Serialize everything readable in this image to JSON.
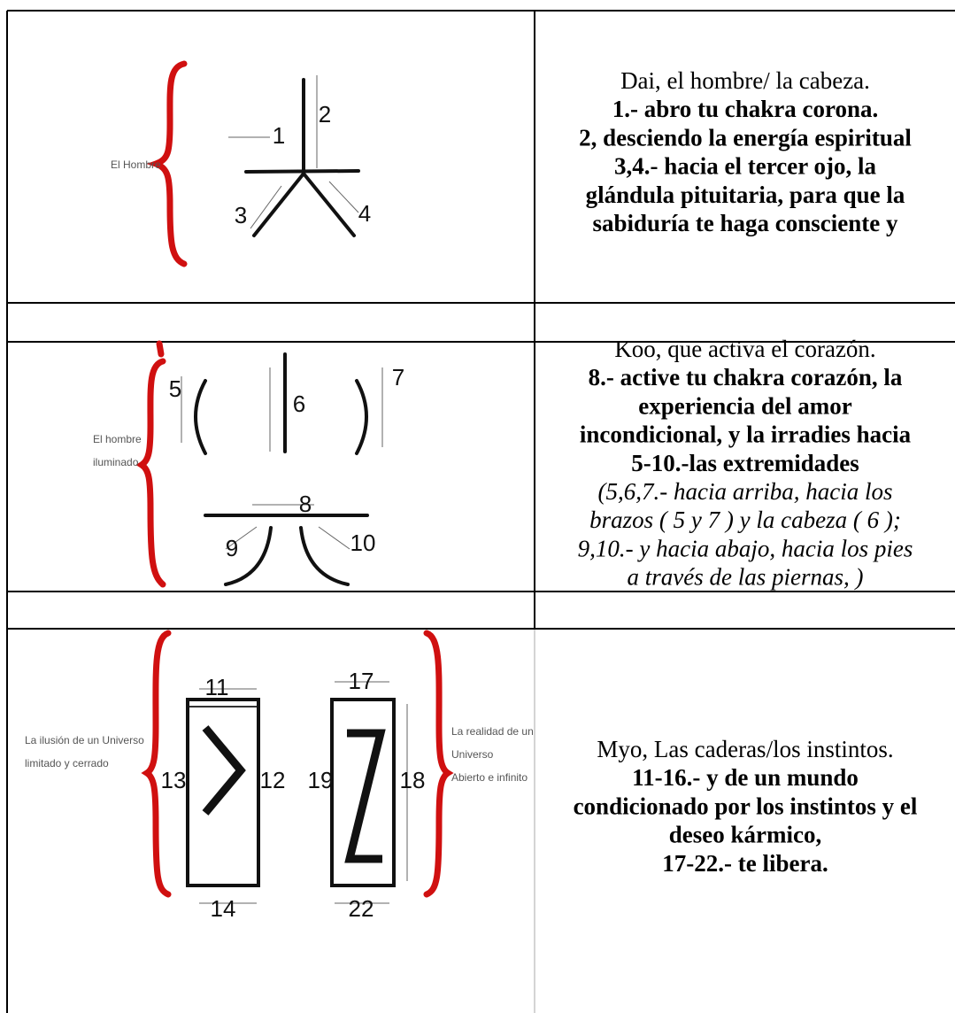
{
  "table": {
    "rows": [
      {
        "diagram": {
          "caption": [
            "El Hombre"
          ],
          "labels": [
            "1",
            "2",
            "3",
            "4"
          ]
        },
        "text": {
          "title": "Dai, el hombre/ la cabeza.",
          "lines": [
            "1.- abro tu chakra corona.",
            "2, desciendo la energía espiritual",
            "3,4.-  hacia el tercer ojo, la",
            "glándula pituitaria, para que la",
            "sabiduría te haga consciente y"
          ],
          "italic": []
        }
      },
      {
        "diagram": {
          "caption": [
            "El hombre",
            "iluminado"
          ],
          "labels": [
            "5",
            "6",
            "7",
            "8",
            "9",
            "10"
          ]
        },
        "text": {
          "title": "Koo, que activa el corazón.",
          "lines": [
            "8.- active tu chakra corazón, la",
            "experiencia del amor",
            "incondicional, y la irradies hacia",
            "5-10.-las extremidades"
          ],
          "italic": [
            "(5,6,7.-  hacia arriba, hacia los",
            "brazos ( 5 y 7 ) y la cabeza ( 6 );",
            "9,10.- y hacia abajo, hacia los pies",
            "a través de las piernas, )"
          ]
        }
      },
      {
        "diagram": {
          "caption": [
            "La ilusión de un Universo",
            "limitado y cerrado"
          ],
          "caption_right": [
            "La realidad de un",
            "Universo",
            "Abierto e infinito"
          ],
          "labels": [
            "11",
            "13",
            "12",
            "14",
            "17",
            "19",
            "18",
            "22"
          ]
        },
        "text": {
          "title": "Myo, Las caderas/los instintos.",
          "lines": [
            "11-16.- y de un mundo",
            "condicionado por los instintos y el",
            "deseo kármico,",
            "17-22.- te libera."
          ],
          "italic": []
        }
      }
    ]
  }
}
